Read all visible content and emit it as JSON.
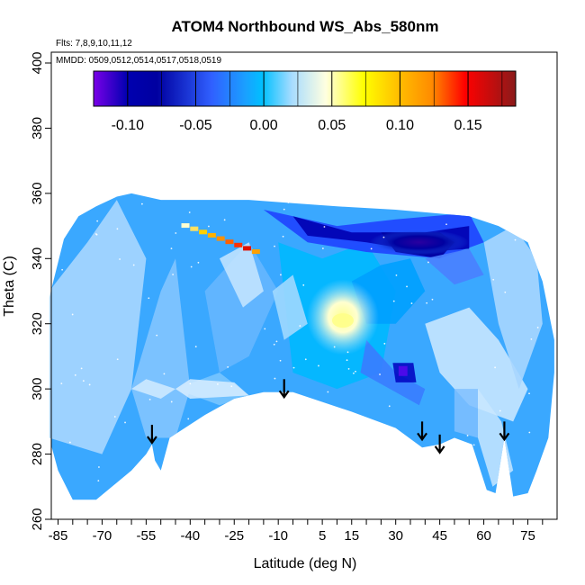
{
  "chart_data": {
    "type": "heatmap",
    "title": "ATOM4 Northbound WS_Abs_580nm",
    "notes": [
      "Flts: 7,8,9,10,11,12",
      "MMDD: 0509,0512,0514,0517,0518,0519"
    ],
    "xlabel": "Latitude (deg N)",
    "ylabel": "Theta (C)",
    "xlim": [
      -88,
      88
    ],
    "ylim": [
      260,
      405
    ],
    "x_ticks": [
      -85,
      -70,
      -55,
      -40,
      -25,
      -10,
      5,
      15,
      30,
      45,
      60,
      75
    ],
    "y_ticks": [
      260,
      280,
      300,
      320,
      340,
      360,
      380,
      400
    ],
    "colorbar": {
      "range": [
        -0.125,
        0.185
      ],
      "ticks": [
        -0.1,
        -0.05,
        0.0,
        0.05,
        0.1,
        0.15
      ],
      "tick_labels": [
        "-0.10",
        "-0.05",
        "0.00",
        "0.05",
        "0.10",
        "0.15"
      ],
      "colors": [
        "#7a00e8",
        "#000090",
        "#0000ff",
        "#1aa0ff",
        "#00c0ff",
        "#a8dcff",
        "#ffffe0",
        "#ffff00",
        "#ffc000",
        "#ff8c00",
        "#ff0000",
        "#c00000",
        "#8b1a1a"
      ]
    },
    "arrows_lat": [
      -53,
      -8,
      39,
      45,
      67
    ],
    "features": [
      {
        "name": "background",
        "value": 0.0
      },
      {
        "name": "strong negative band near 345K at 20-50N",
        "value": -0.11
      },
      {
        "name": "negative patch near 305K at 33N",
        "value": -0.1
      },
      {
        "name": "positive streak near 343K at -30 to -20N",
        "value": 0.12
      },
      {
        "name": "yellow maximum near 322K at 12N",
        "value": 0.05
      }
    ]
  }
}
